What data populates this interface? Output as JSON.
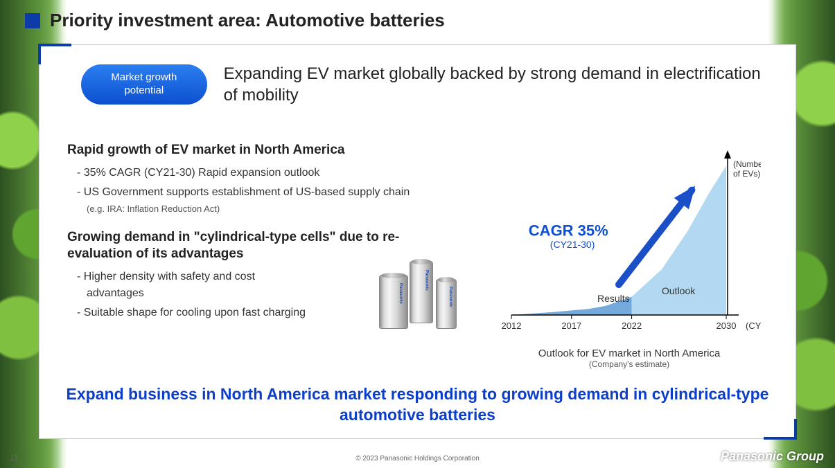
{
  "page": {
    "title": "Priority investment area: Automotive batteries",
    "number": "11",
    "copyright": "© 2023 Panasonic Holdings Corporation",
    "brand": "Panasonic Group",
    "title_accent_color": "#0d3ca8"
  },
  "pill": {
    "label": "Market growth potential",
    "bg_gradient_top": "#2b7ff0",
    "bg_gradient_bottom": "#0d4fd0"
  },
  "headline": "Expanding EV market globally backed by strong demand in electrification of mobility",
  "section1": {
    "title": "Rapid growth of EV market in North America",
    "bullet1": "35% CAGR (CY21-30) Rapid expansion outlook",
    "bullet2": "US Government supports establishment of US-based supply chain",
    "note": "(e.g. IRA: Inflation Reduction Act)"
  },
  "section2": {
    "title": "Growing demand in \"cylindrical-type cells\" due to re-evaluation of its advantages",
    "bullet1": "Higher density with safety and cost advantages",
    "bullet2": "Suitable shape for cooling upon fast charging"
  },
  "cell_brand": "Panasonic",
  "chart": {
    "type": "area",
    "title": "Outlook for EV market in North America",
    "subtitle": "(Company's estimate)",
    "y_axis_label": "(Number of EVs)",
    "x_axis_suffix": "(CY)",
    "callout_main": "CAGR 35%",
    "callout_sub": "(CY21-30)",
    "callout_color": "#0d4fd0",
    "results_label": "Results",
    "outlook_label": "Outlook",
    "results_color": "#5c9bd5",
    "outlook_color": "#b3d9f2",
    "axis_color": "#000000",
    "x_ticks": [
      "2012",
      "2017",
      "2022",
      "2030"
    ],
    "x_positions": [
      0,
      0.28,
      0.56,
      1.0
    ],
    "results_points": [
      {
        "x": 0.0,
        "y": 0.0
      },
      {
        "x": 0.1,
        "y": 0.01
      },
      {
        "x": 0.2,
        "y": 0.02
      },
      {
        "x": 0.28,
        "y": 0.03
      },
      {
        "x": 0.36,
        "y": 0.04
      },
      {
        "x": 0.44,
        "y": 0.06
      },
      {
        "x": 0.5,
        "y": 0.09
      },
      {
        "x": 0.56,
        "y": 0.12
      }
    ],
    "outlook_points": [
      {
        "x": 0.56,
        "y": 0.12
      },
      {
        "x": 0.7,
        "y": 0.3
      },
      {
        "x": 0.82,
        "y": 0.55
      },
      {
        "x": 0.92,
        "y": 0.8
      },
      {
        "x": 1.0,
        "y": 0.98
      }
    ],
    "arrow_color": "#1a4fc8"
  },
  "bottom_message": "Expand business in North America market responding to growing demand in cylindrical-type automotive batteries",
  "bottom_color": "#0d3ec8"
}
